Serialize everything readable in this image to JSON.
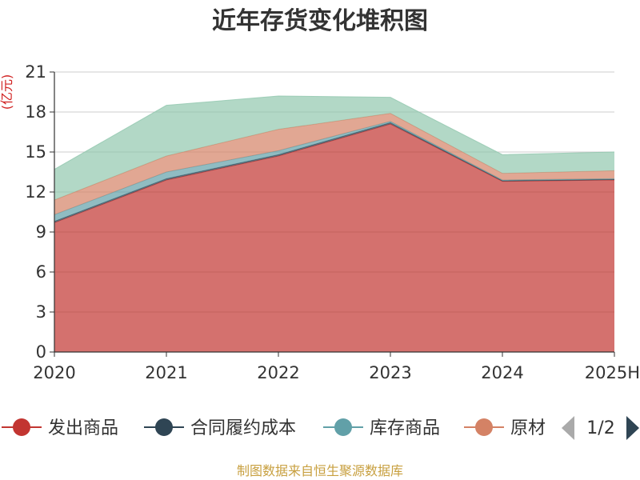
{
  "chart_data": {
    "type": "area",
    "stacked": true,
    "title": "近年存货变化堆积图",
    "unit_label": "(亿元)",
    "x": [
      "2020",
      "2021",
      "2022",
      "2023",
      "2024",
      "2025H"
    ],
    "ylim": [
      0,
      21
    ],
    "yticks": [
      "0",
      "3",
      "6",
      "9",
      "12",
      "15",
      "18",
      "21"
    ],
    "grid": true,
    "series": [
      {
        "name": "发出商品",
        "color": "#c23531",
        "values": [
          9.7,
          12.9,
          14.7,
          17.1,
          12.8,
          12.9
        ]
      },
      {
        "name": "合同履约成本",
        "color": "#2f4554",
        "values": [
          0.1,
          0.1,
          0.1,
          0.1,
          0.05,
          0.05
        ]
      },
      {
        "name": "库存商品",
        "color": "#61a0a8",
        "values": [
          0.5,
          0.5,
          0.3,
          0.1,
          0.05,
          0.05
        ]
      },
      {
        "name": "原材料",
        "color": "#d48265",
        "values": [
          1.1,
          1.2,
          1.6,
          0.6,
          0.5,
          0.6
        ]
      },
      {
        "name": "",
        "color": "#91c7ae",
        "values": [
          2.3,
          3.8,
          2.5,
          1.2,
          1.4,
          1.4
        ]
      }
    ],
    "legend": {
      "position": "bottom",
      "items": [
        "发出商品",
        "合同履约成本",
        "库存商品",
        "原材"
      ],
      "page": "1/2"
    }
  },
  "footer": {
    "source": "制图数据来自恒生聚源数据库"
  }
}
